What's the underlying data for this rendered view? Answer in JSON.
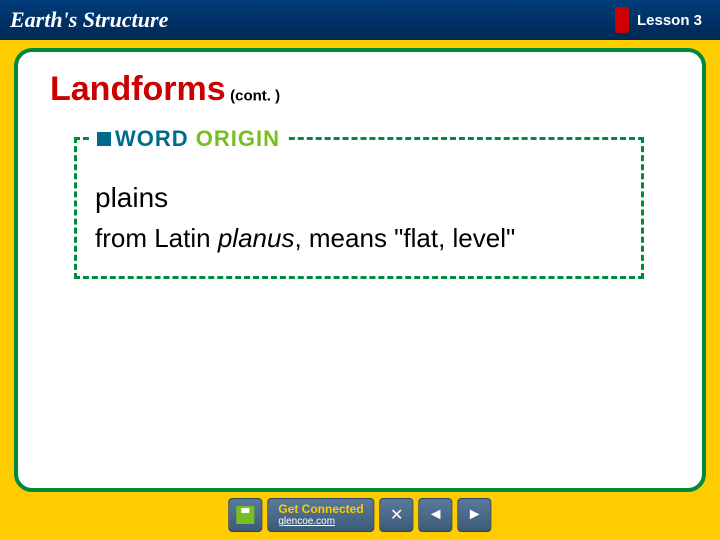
{
  "header": {
    "title": "Earth's Structure",
    "lesson_label": "Lesson 3"
  },
  "content": {
    "topic_title": "Landforms",
    "cont": "(cont. )",
    "word_origin": {
      "label_word": "WORD",
      "label_origin": " ORIGIN",
      "term": "plains",
      "definition_prefix": "from Latin ",
      "definition_italic": "planus",
      "definition_suffix": ", means \"flat, level\""
    }
  },
  "nav": {
    "save": "save",
    "connected_top": "Get Connected",
    "connected_bottom": "glencoe.com",
    "close": "✕",
    "prev": "◄",
    "next": "►"
  },
  "styling": {
    "page_bg": "#ffcc00",
    "header_gradient_top": "#003d7a",
    "header_gradient_bottom": "#002855",
    "frame_border": "#008a3e",
    "frame_bg": "#ffffff",
    "topic_color": "#cc0000",
    "wo_dash_color": "#008a3e",
    "wo_word_color": "#006a8e",
    "wo_origin_color": "#78be20",
    "text_color": "#000000",
    "nav_bg_top": "#5a7a9a",
    "nav_bg_bottom": "#3d5a78",
    "title_fontsize": 22,
    "topic_fontsize": 34,
    "term_fontsize": 28,
    "definition_fontsize": 26,
    "wo_label_fontsize": 22
  }
}
